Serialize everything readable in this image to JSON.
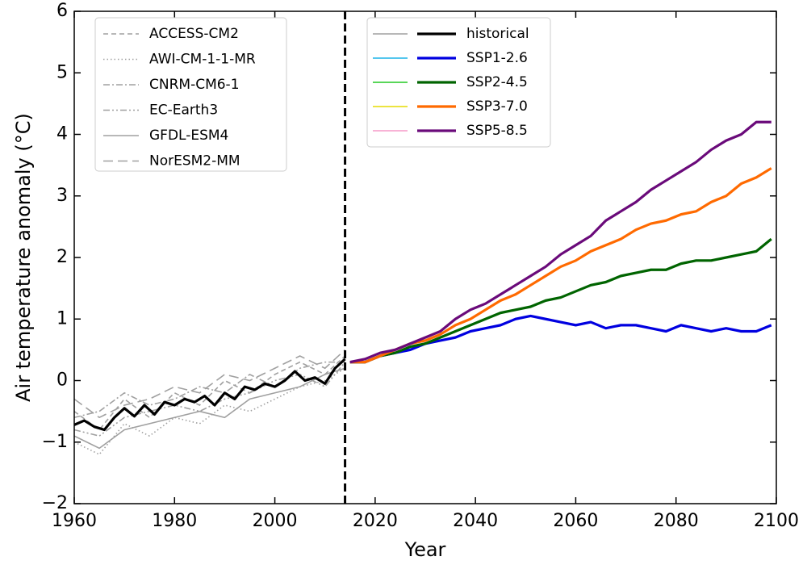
{
  "chart_data": {
    "type": "line",
    "xlabel": "Year",
    "ylabel": "Air temperature anomaly (°C)",
    "xlim": [
      1960,
      2100
    ],
    "ylim": [
      -2,
      6
    ],
    "xticks": [
      1960,
      1980,
      2000,
      2020,
      2040,
      2060,
      2080,
      2100
    ],
    "yticks": [
      {
        "value": -2,
        "label": "−2"
      },
      {
        "value": -1,
        "label": "−1"
      },
      0,
      1,
      2,
      3,
      4,
      5,
      6
    ],
    "vline": 2014,
    "models": [
      {
        "name": "ACCESS-CM2",
        "dash": "dashed",
        "color": "#a0a0a0",
        "x": [
          1960,
          1965,
          1970,
          1975,
          1980,
          1985,
          1990,
          1995,
          2000,
          2005,
          2010,
          2014
        ],
        "values": [
          -0.5,
          -0.8,
          -0.3,
          -0.6,
          -0.2,
          -0.4,
          0.0,
          -0.2,
          0.1,
          0.3,
          0.1,
          0.4
        ]
      },
      {
        "name": "AWI-CM-1-1-MR",
        "dash": "dotted",
        "color": "#a0a0a0",
        "x": [
          1960,
          1965,
          1970,
          1975,
          1980,
          1985,
          1990,
          1995,
          2000,
          2005,
          2010,
          2014
        ],
        "values": [
          -1.0,
          -1.2,
          -0.7,
          -0.9,
          -0.6,
          -0.7,
          -0.4,
          -0.5,
          -0.3,
          -0.1,
          0.0,
          0.2
        ]
      },
      {
        "name": "CNRM-CM6-1",
        "dash": "dashdot",
        "color": "#a0a0a0",
        "x": [
          1960,
          1965,
          1970,
          1975,
          1980,
          1985,
          1990,
          1995,
          2000,
          2005,
          2010,
          2014
        ],
        "values": [
          -0.6,
          -0.5,
          -0.2,
          -0.4,
          -0.3,
          -0.1,
          -0.2,
          0.1,
          -0.1,
          0.2,
          0.3,
          0.3
        ]
      },
      {
        "name": "EC-Earth3",
        "dash": "dashdotdot",
        "color": "#a0a0a0",
        "x": [
          1960,
          1965,
          1970,
          1975,
          1980,
          1985,
          1990,
          1995,
          2000,
          2005,
          2010,
          2014
        ],
        "values": [
          -0.8,
          -0.9,
          -0.6,
          -0.5,
          -0.4,
          -0.5,
          -0.3,
          -0.2,
          0.0,
          0.1,
          -0.1,
          0.3
        ]
      },
      {
        "name": "GFDL-ESM4",
        "dash": "solid",
        "color": "#a0a0a0",
        "x": [
          1960,
          1965,
          1970,
          1975,
          1980,
          1985,
          1990,
          1995,
          2000,
          2005,
          2010,
          2014
        ],
        "values": [
          -0.9,
          -1.1,
          -0.8,
          -0.7,
          -0.6,
          -0.5,
          -0.6,
          -0.3,
          -0.2,
          -0.1,
          0.1,
          0.2
        ]
      },
      {
        "name": "NorESM2-MM",
        "dash": "longdash",
        "color": "#a0a0a0",
        "x": [
          1960,
          1965,
          1970,
          1975,
          1980,
          1985,
          1990,
          1995,
          2000,
          2005,
          2010,
          2014
        ],
        "values": [
          -0.3,
          -0.6,
          -0.4,
          -0.3,
          -0.1,
          -0.2,
          0.1,
          0.0,
          0.2,
          0.4,
          0.2,
          0.5
        ]
      }
    ],
    "series": [
      {
        "name": "historical",
        "color": "#000000",
        "light_color": "#a0a0a0",
        "x": [
          1960,
          1962,
          1964,
          1966,
          1968,
          1970,
          1972,
          1974,
          1976,
          1978,
          1980,
          1982,
          1984,
          1986,
          1988,
          1990,
          1992,
          1994,
          1996,
          1998,
          2000,
          2002,
          2004,
          2006,
          2008,
          2010,
          2012,
          2014
        ],
        "values": [
          -0.72,
          -0.65,
          -0.75,
          -0.8,
          -0.6,
          -0.45,
          -0.58,
          -0.4,
          -0.55,
          -0.35,
          -0.4,
          -0.3,
          -0.35,
          -0.25,
          -0.4,
          -0.2,
          -0.3,
          -0.1,
          -0.15,
          -0.05,
          -0.1,
          0.0,
          0.15,
          0.0,
          0.05,
          -0.05,
          0.2,
          0.35
        ]
      },
      {
        "name": "SSP1-2.6",
        "color": "#0000e0",
        "light_color": "#1cb4e8",
        "x": [
          2015,
          2018,
          2021,
          2024,
          2027,
          2030,
          2033,
          2036,
          2039,
          2042,
          2045,
          2048,
          2051,
          2054,
          2057,
          2060,
          2063,
          2066,
          2069,
          2072,
          2075,
          2078,
          2081,
          2084,
          2087,
          2090,
          2093,
          2096,
          2099
        ],
        "values": [
          0.3,
          0.3,
          0.4,
          0.45,
          0.5,
          0.6,
          0.65,
          0.7,
          0.8,
          0.85,
          0.9,
          1.0,
          1.05,
          1.0,
          0.95,
          0.9,
          0.95,
          0.85,
          0.9,
          0.9,
          0.85,
          0.8,
          0.9,
          0.85,
          0.8,
          0.85,
          0.8,
          0.8,
          0.9
        ]
      },
      {
        "name": "SSP2-4.5",
        "color": "#006400",
        "light_color": "#22c822",
        "x": [
          2015,
          2018,
          2021,
          2024,
          2027,
          2030,
          2033,
          2036,
          2039,
          2042,
          2045,
          2048,
          2051,
          2054,
          2057,
          2060,
          2063,
          2066,
          2069,
          2072,
          2075,
          2078,
          2081,
          2084,
          2087,
          2090,
          2093,
          2096,
          2099
        ],
        "values": [
          0.3,
          0.3,
          0.4,
          0.45,
          0.55,
          0.6,
          0.7,
          0.8,
          0.9,
          1.0,
          1.1,
          1.15,
          1.2,
          1.3,
          1.35,
          1.45,
          1.55,
          1.6,
          1.7,
          1.75,
          1.8,
          1.8,
          1.9,
          1.95,
          1.95,
          2.0,
          2.05,
          2.1,
          2.3
        ]
      },
      {
        "name": "SSP3-7.0",
        "color": "#ff6a00",
        "light_color": "#e6dc00",
        "x": [
          2015,
          2018,
          2021,
          2024,
          2027,
          2030,
          2033,
          2036,
          2039,
          2042,
          2045,
          2048,
          2051,
          2054,
          2057,
          2060,
          2063,
          2066,
          2069,
          2072,
          2075,
          2078,
          2081,
          2084,
          2087,
          2090,
          2093,
          2096,
          2099
        ],
        "values": [
          0.3,
          0.3,
          0.4,
          0.5,
          0.6,
          0.65,
          0.75,
          0.9,
          1.0,
          1.15,
          1.3,
          1.4,
          1.55,
          1.7,
          1.85,
          1.95,
          2.1,
          2.2,
          2.3,
          2.45,
          2.55,
          2.6,
          2.7,
          2.75,
          2.9,
          3.0,
          3.2,
          3.3,
          3.45
        ]
      },
      {
        "name": "SSP5-8.5",
        "color": "#6a0a7a",
        "light_color": "#f59ac8",
        "x": [
          2015,
          2018,
          2021,
          2024,
          2027,
          2030,
          2033,
          2036,
          2039,
          2042,
          2045,
          2048,
          2051,
          2054,
          2057,
          2060,
          2063,
          2066,
          2069,
          2072,
          2075,
          2078,
          2081,
          2084,
          2087,
          2090,
          2093,
          2096,
          2099
        ],
        "values": [
          0.3,
          0.35,
          0.45,
          0.5,
          0.6,
          0.7,
          0.8,
          1.0,
          1.15,
          1.25,
          1.4,
          1.55,
          1.7,
          1.85,
          2.05,
          2.2,
          2.35,
          2.6,
          2.75,
          2.9,
          3.1,
          3.25,
          3.4,
          3.55,
          3.75,
          3.9,
          4.0,
          4.2,
          4.2
        ]
      }
    ]
  }
}
